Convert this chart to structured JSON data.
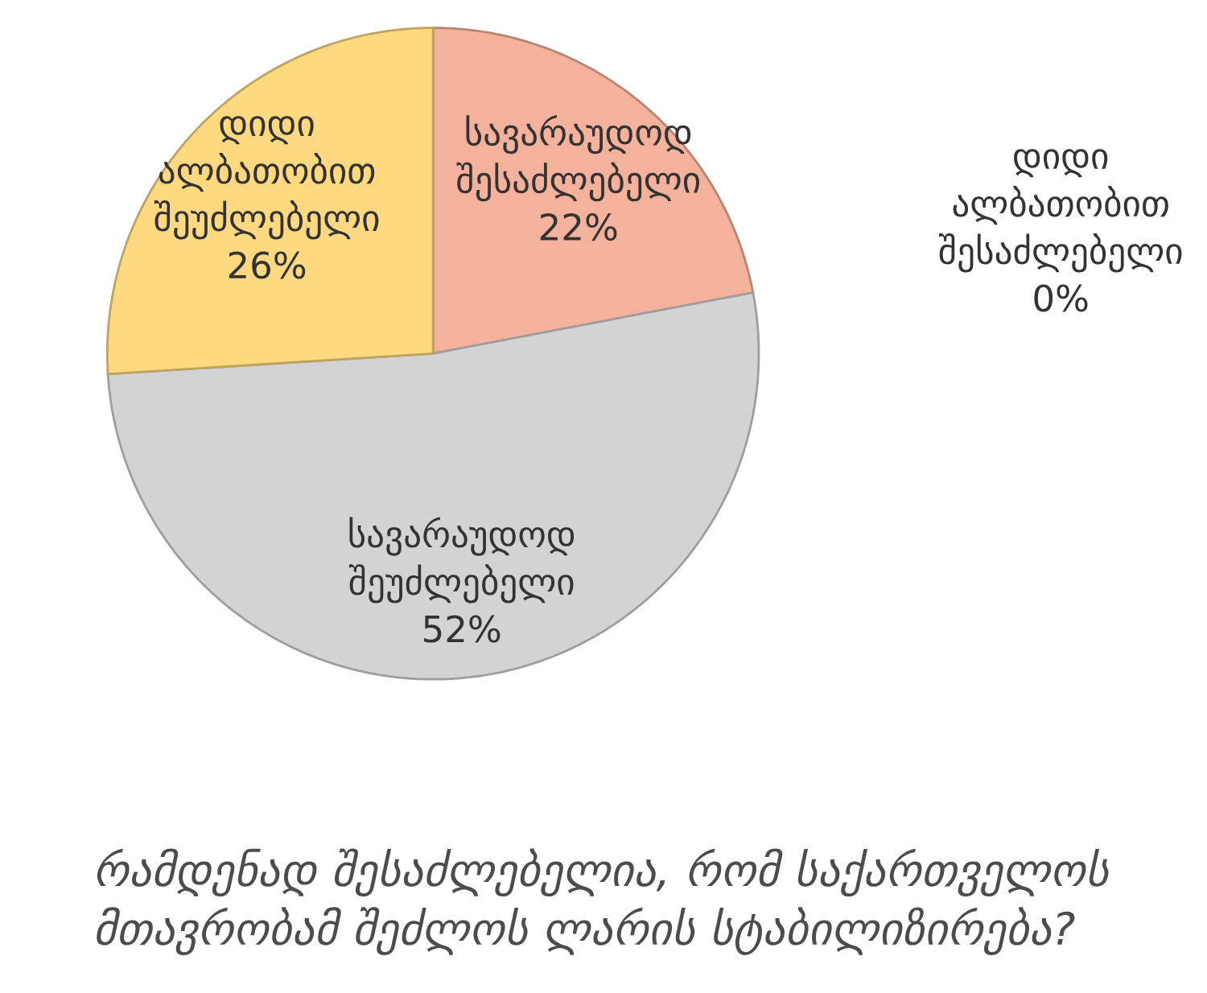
{
  "chart_data": {
    "type": "pie",
    "title": "რამდენად შესაძლებელია, რომ საქართველოს მთავრობამ შეძლოს ლარის სტაბილიზირება?",
    "categories": [
      "დიდი ალბათობით შესაძლებელი",
      "სავარაუდოდ შესაძლებელი",
      "სავარაუდოდ შეუძლებელი",
      "დიდი ალბათობით შეუძლებელი"
    ],
    "values": [
      0,
      22,
      52,
      26
    ],
    "value_labels": [
      "0%",
      "22%",
      "52%",
      "26%"
    ],
    "colors": [
      "#9dc3e6",
      "#f4b19b",
      "#d3d3d3",
      "#ffd97f"
    ]
  }
}
